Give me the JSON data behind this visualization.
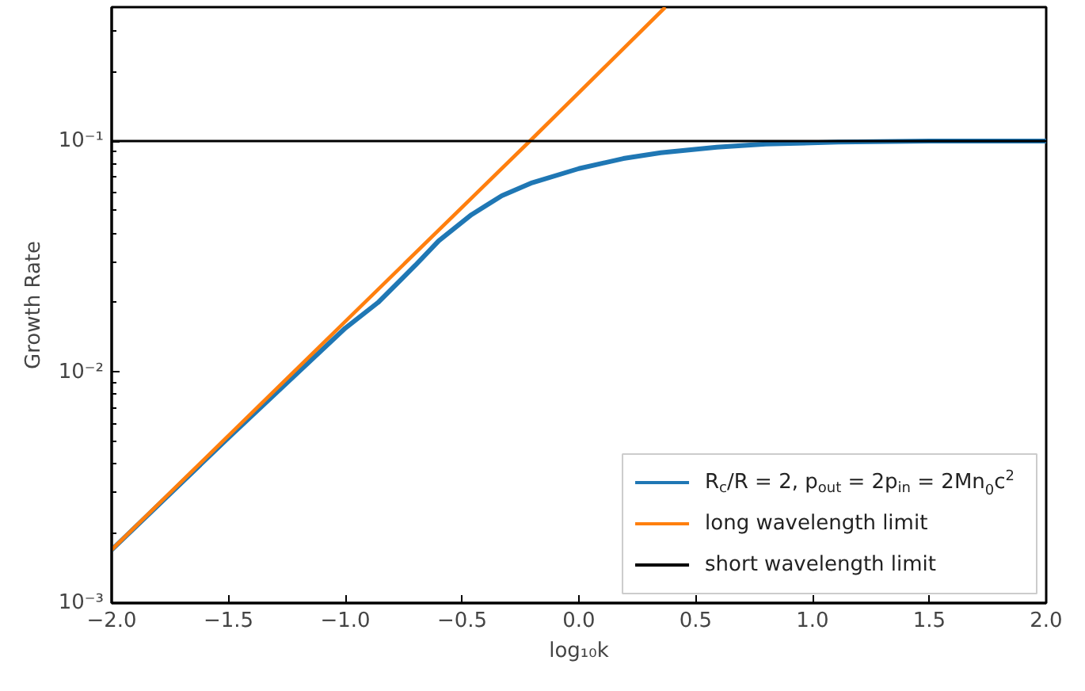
{
  "chart_data": {
    "type": "line",
    "xlabel": "log₁₀k",
    "ylabel": "Growth Rate",
    "log": "y",
    "grid": false,
    "legend": "bottom right",
    "line_style": "solid",
    "marker": "none",
    "xlim": [
      -2.0,
      2.0
    ],
    "xticks": [
      {
        "value": -2,
        "label": "−2.0"
      },
      {
        "value": -1.5,
        "label": "−1.5"
      },
      {
        "value": -1,
        "label": "−1.0"
      },
      {
        "value": -0.5,
        "label": "−0.5"
      },
      {
        "value": 0,
        "label": "0.0"
      },
      {
        "value": 0.5,
        "label": "0.5"
      },
      {
        "value": 1,
        "label": "1.0"
      },
      {
        "value": 1.5,
        "label": "1.5"
      },
      {
        "value": 2,
        "label": "2.0"
      }
    ],
    "ylim": [
      0.001,
      0.38
    ],
    "yticks": [
      {
        "value": 0.001,
        "label": "10⁻³"
      },
      {
        "value": 0.01,
        "label": "10⁻²"
      },
      {
        "value": 0.1,
        "label": "10⁻¹"
      }
    ],
    "series": [
      {
        "name": "R$_{c}$/R = 2, p$_{out}$ = 2p$_{in}$ = 2Mn$_{0}$c$^{2}$",
        "color": "#1f77b4",
        "x": [
          -2.0,
          -1.5,
          -1.0,
          -0.86,
          -0.7,
          -0.6,
          -0.46,
          -0.33,
          -0.2,
          0.0,
          0.19,
          0.35,
          0.59,
          0.8,
          1.11,
          1.5,
          2.0
        ],
        "values": [
          0.0017,
          0.0052,
          0.0155,
          0.02,
          0.029,
          0.037,
          0.048,
          0.058,
          0.066,
          0.076,
          0.084,
          0.089,
          0.094,
          0.097,
          0.099,
          0.1,
          0.1
        ]
      },
      {
        "name": "long wavelength limit",
        "color": "#ff7f0e",
        "x": [
          -2.0,
          -0.21,
          0.37
        ],
        "values": [
          0.0017,
          0.1,
          0.38
        ]
      },
      {
        "name": "short wavelength limit",
        "color": "#000000",
        "x": [
          -2.0,
          2.0
        ],
        "values": [
          0.1,
          0.1
        ]
      }
    ]
  }
}
